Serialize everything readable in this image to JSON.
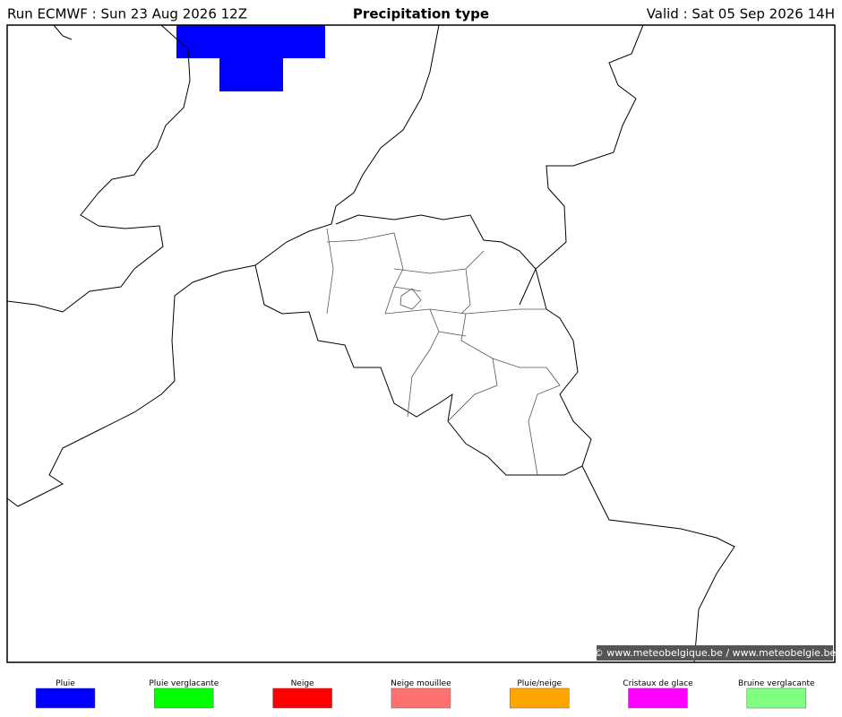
{
  "header": {
    "run": "Run ECMWF : Sun 23 Aug 2026 12Z",
    "title": "Precipitation type",
    "valid": "Valid : Sat 05 Sep 2026 14H"
  },
  "copyright": "© www.meteobelgique.be / www.meteobelgie.be",
  "legend": [
    {
      "label": "Pluie",
      "color": "#0000ff"
    },
    {
      "label": "Pluie verglacante",
      "color": "#00ff00"
    },
    {
      "label": "Neige",
      "color": "#ff0000"
    },
    {
      "label": "Neige mouillee",
      "color": "#ff7070"
    },
    {
      "label": "Pluie/neige",
      "color": "#ffa500"
    },
    {
      "label": "Cristaux de glace",
      "color": "#ff00ff"
    },
    {
      "label": "Bruine verglacante",
      "color": "#80ff80"
    }
  ]
}
